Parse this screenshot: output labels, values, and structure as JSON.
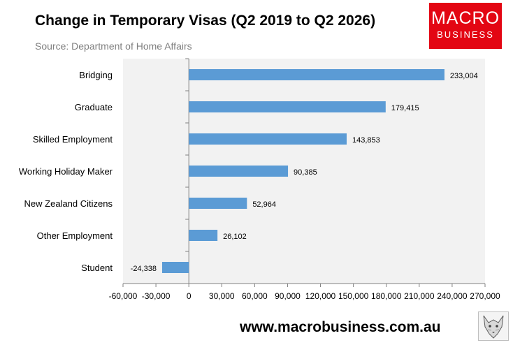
{
  "header": {
    "title": "Change in Temporary Visas (Q2 2019 to Q2 2026)",
    "subtitle": "Source: Department of Home Affairs"
  },
  "logo": {
    "line1": "MACRO",
    "line2": "BUSINESS",
    "color": "#e30613"
  },
  "footer": {
    "website": "www.macrobusiness.com.au",
    "emblem_icon": "wolf-emblem-icon"
  },
  "chart_data": {
    "type": "bar",
    "orientation": "horizontal",
    "categories": [
      "Bridging",
      "Graduate",
      "Skilled Employment",
      "Working Holiday Maker",
      "New Zealand Citizens",
      "Other Employment",
      "Student"
    ],
    "values": [
      233004,
      179415,
      143853,
      90385,
      52964,
      26102,
      -24338
    ],
    "value_labels": [
      "233,004",
      "179,415",
      "143,853",
      "90,385",
      "52,964",
      "26,102",
      "-24,338"
    ],
    "xlim": [
      -60000,
      270000
    ],
    "xticks": [
      -60000,
      -30000,
      0,
      30000,
      60000,
      90000,
      120000,
      150000,
      180000,
      210000,
      240000,
      270000
    ],
    "xtick_labels": [
      "-60,000",
      "-30,000",
      "0",
      "30,000",
      "60,000",
      "90,000",
      "120,000",
      "150,000",
      "180,000",
      "210,000",
      "240,000",
      "270,000"
    ],
    "grid": false,
    "legend": "none",
    "bar_color": "#5b9bd5",
    "plot_background": "#f2f2f2"
  }
}
